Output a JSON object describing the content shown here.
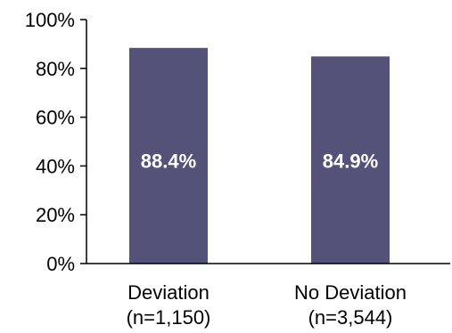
{
  "chart_data": {
    "type": "bar",
    "categories": [
      {
        "line1": "Deviation",
        "line2": "(n=1,150)"
      },
      {
        "line1": "No Deviation",
        "line2": "(n=3,544)"
      }
    ],
    "values": [
      88.4,
      84.9
    ],
    "data_labels": [
      "88.4%",
      "84.9%"
    ],
    "ylim": [
      0,
      100
    ],
    "yticks": [
      0,
      20,
      40,
      60,
      80,
      100
    ],
    "ytick_labels": [
      "0%",
      "20%",
      "40%",
      "60%",
      "80%",
      "100%"
    ],
    "grid": false,
    "legend": "none",
    "bar_color": "#545278",
    "axis_color": "#000000"
  }
}
